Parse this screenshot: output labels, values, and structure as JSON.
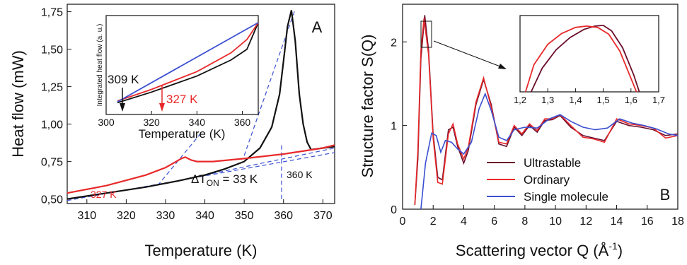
{
  "chart_data": [
    {
      "panel": "A",
      "type": "line",
      "xlabel": "Temperature (K)",
      "ylabel": "Heat flow (mW)",
      "xlim": [
        305,
        373
      ],
      "ylim": [
        0.47,
        1.8
      ],
      "xticks": [
        310,
        320,
        330,
        340,
        350,
        360,
        370
      ],
      "yticks": [
        0.5,
        0.75,
        1.0,
        1.25,
        1.5,
        1.75
      ],
      "ytick_labels": [
        "0,50",
        "0,75",
        "1,00",
        "1,25",
        "1,50",
        "1,75"
      ],
      "panel_label": "A",
      "series": [
        {
          "color": "#111111",
          "x": [
            305,
            315,
            325,
            333,
            340,
            345,
            350,
            354,
            357,
            359,
            360,
            361,
            362,
            363,
            364,
            365,
            366,
            367,
            370,
            373
          ],
          "y": [
            0.5,
            0.54,
            0.58,
            0.62,
            0.66,
            0.7,
            0.75,
            0.84,
            0.98,
            1.2,
            1.42,
            1.65,
            1.76,
            1.55,
            1.2,
            1.0,
            0.88,
            0.83,
            0.84,
            0.85
          ]
        },
        {
          "color": "#e8292a",
          "x": [
            305,
            315,
            325,
            330,
            332,
            334,
            335,
            336.5,
            338,
            342,
            350,
            360,
            370,
            373
          ],
          "y": [
            0.54,
            0.59,
            0.66,
            0.71,
            0.74,
            0.77,
            0.78,
            0.76,
            0.75,
            0.75,
            0.77,
            0.8,
            0.84,
            0.86
          ]
        }
      ],
      "guides": [
        {
          "x": [
            305,
            373
          ],
          "y": [
            0.49,
            0.81
          ]
        },
        {
          "x": [
            328,
            339
          ],
          "y": [
            0.59,
            0.94
          ]
        },
        {
          "x": [
            340,
            373
          ],
          "y": [
            0.66,
            0.84
          ]
        },
        {
          "x": [
            350,
            363
          ],
          "y": [
            0.79,
            1.77
          ]
        },
        {
          "x": [
            359.5,
            359.5
          ],
          "y": [
            0.5,
            0.87
          ]
        }
      ],
      "annotations": [
        {
          "text": "327 K",
          "color": "#e8292a"
        },
        {
          "text": "ΔT",
          "sub": "ON",
          "tail": " = 33 K",
          "color": "#111111"
        },
        {
          "text": "360 K",
          "color": "#111111"
        }
      ],
      "inset": {
        "xlabel": "Temperature (K)",
        "ylabel": "Integrated heat flow (a. u.)",
        "xlim": [
          300,
          367
        ],
        "xticks": [
          300,
          320,
          340,
          360
        ],
        "series": [
          {
            "color": "#111111",
            "x": [
              305,
              320,
              340,
              355,
              362,
              367
            ],
            "y": [
              0.1,
              0.22,
              0.4,
              0.58,
              0.7,
              1.0
            ]
          },
          {
            "color": "#e8292a",
            "x": [
              305,
              320,
              340,
              355,
              362,
              367
            ],
            "y": [
              0.12,
              0.25,
              0.45,
              0.66,
              0.81,
              1.0
            ]
          },
          {
            "color": "#3a4fd1",
            "x": [
              305,
              367
            ],
            "y": [
              0.11,
              1.0
            ]
          }
        ],
        "annotations": [
          {
            "text": "309 K",
            "color": "#111111"
          },
          {
            "text": "327 K",
            "color": "#e8292a"
          }
        ]
      }
    },
    {
      "panel": "B",
      "type": "line",
      "xlabel": "Scattering vector Q (Å",
      "xlabel_sup": "-1",
      "xlabel_tail": ")",
      "ylabel": "Structure factor S(Q)",
      "xlim": [
        0,
        18
      ],
      "ylim": [
        0,
        2.45
      ],
      "xticks": [
        0,
        2,
        4,
        6,
        8,
        10,
        12,
        14,
        16,
        18
      ],
      "yticks": [
        0,
        1,
        2
      ],
      "panel_label": "B",
      "series": [
        {
          "name": "Ultrastable",
          "color": "#6b0d2a",
          "x": [
            0.8,
            1.0,
            1.2,
            1.45,
            1.7,
            2.0,
            2.3,
            2.6,
            3.0,
            3.3,
            3.6,
            4.0,
            4.3,
            4.8,
            5.3,
            5.8,
            6.3,
            6.8,
            7.3,
            7.8,
            8.3,
            8.8,
            9.3,
            9.8,
            10.3,
            11.0,
            11.8,
            12.5,
            13.2,
            14.0,
            14.8,
            15.6,
            16.4,
            17.2,
            18.0
          ],
          "y": [
            0.05,
            0.6,
            1.8,
            2.32,
            1.9,
            0.9,
            0.38,
            0.35,
            0.95,
            0.98,
            0.75,
            0.55,
            0.7,
            1.25,
            1.55,
            1.25,
            0.78,
            0.75,
            0.98,
            0.88,
            1.0,
            0.92,
            1.06,
            1.07,
            1.12,
            0.98,
            0.88,
            0.85,
            0.82,
            1.05,
            1.0,
            0.98,
            0.95,
            0.88,
            0.9
          ]
        },
        {
          "name": "Ordinary",
          "color": "#e8292a",
          "x": [
            0.8,
            1.0,
            1.2,
            1.4,
            1.7,
            2.0,
            2.3,
            2.6,
            3.0,
            3.3,
            3.6,
            4.0,
            4.3,
            4.8,
            5.3,
            5.8,
            6.3,
            6.8,
            7.3,
            7.8,
            8.3,
            8.8,
            9.3,
            9.8,
            10.3,
            11.0,
            11.8,
            12.5,
            13.2,
            14.0,
            14.8,
            15.6,
            16.4,
            17.2,
            18.0
          ],
          "y": [
            0.05,
            0.7,
            1.9,
            2.28,
            1.85,
            0.85,
            0.32,
            0.3,
            0.9,
            1.02,
            0.78,
            0.6,
            0.74,
            1.28,
            1.57,
            1.22,
            0.8,
            0.78,
            1.0,
            0.9,
            1.02,
            0.94,
            1.08,
            1.08,
            1.13,
            1.0,
            0.86,
            0.84,
            0.8,
            1.08,
            1.02,
            1.0,
            0.97,
            0.85,
            0.88
          ]
        },
        {
          "name": "Single molecule",
          "color": "#3a4fd1",
          "x": [
            1.2,
            1.5,
            1.9,
            2.2,
            2.5,
            2.8,
            3.2,
            3.6,
            4.0,
            4.5,
            5.0,
            5.4,
            5.8,
            6.3,
            6.8,
            7.3,
            8.0,
            8.8,
            9.6,
            10.3,
            11.0,
            11.8,
            12.6,
            13.4,
            14.2,
            15.0,
            15.8,
            16.6,
            17.4,
            18.0
          ],
          "y": [
            0.0,
            0.55,
            0.91,
            0.88,
            0.68,
            0.82,
            0.8,
            0.72,
            0.66,
            0.8,
            1.2,
            1.38,
            1.18,
            0.86,
            0.82,
            0.95,
            0.98,
            0.97,
            1.08,
            1.13,
            1.05,
            0.98,
            0.95,
            0.97,
            1.08,
            1.03,
            1.0,
            0.96,
            0.9,
            0.88
          ]
        }
      ],
      "legend_position": "bottom-center",
      "inset": {
        "xlim": [
          1.2,
          1.7
        ],
        "xticks": [
          1.2,
          1.3,
          1.4,
          1.5,
          1.6,
          1.7
        ],
        "xtick_labels": [
          "1,2",
          "1,3",
          "1,4",
          "1,5",
          "1,6",
          "1,7"
        ],
        "series": [
          {
            "color": "#6b0d2a",
            "x": [
              1.24,
              1.28,
              1.33,
              1.38,
              1.43,
              1.47,
              1.5,
              1.53,
              1.57,
              1.61,
              1.63
            ],
            "y": [
              0.0,
              0.35,
              0.62,
              0.8,
              0.92,
              0.97,
              0.98,
              0.9,
              0.65,
              0.25,
              0.0
            ]
          },
          {
            "color": "#e8292a",
            "x": [
              1.22,
              1.25,
              1.3,
              1.35,
              1.4,
              1.44,
              1.48,
              1.52,
              1.56,
              1.6,
              1.62
            ],
            "y": [
              0.0,
              0.4,
              0.7,
              0.86,
              0.95,
              0.97,
              0.95,
              0.85,
              0.6,
              0.2,
              0.0
            ]
          }
        ]
      }
    }
  ]
}
